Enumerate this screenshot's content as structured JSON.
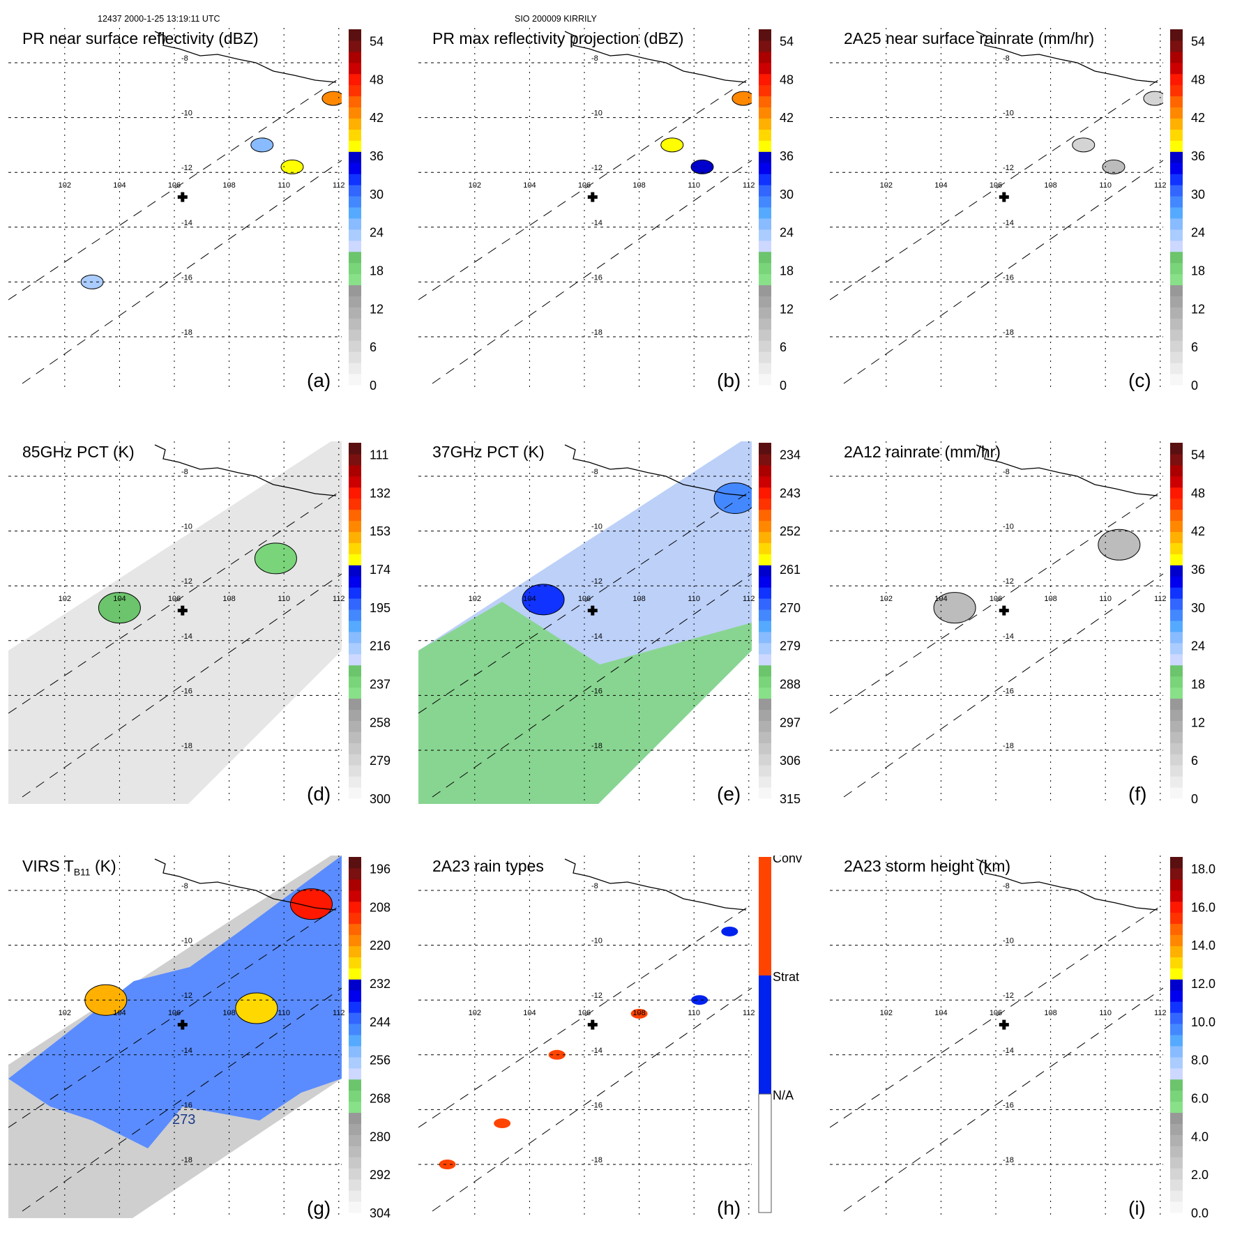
{
  "header": {
    "left": "12437 2000-1-25 13:19:11 UTC",
    "center": "SIO 200009 KIRRILY"
  },
  "map": {
    "lon_ticks": [
      "102",
      "104",
      "106",
      "108",
      "110",
      "112"
    ],
    "lat_ticks": [
      "-8",
      "-10",
      "-12",
      "-14",
      "-16",
      "-18"
    ],
    "storm_center_marker": "plus-icon"
  },
  "colors": {
    "scale": [
      "#f7f7f7",
      "#ececec",
      "#e0e0e0",
      "#d4d4d4",
      "#c8c8c8",
      "#bcbcbc",
      "#b0b0b0",
      "#a4a4a4",
      "#989898",
      "#88e088",
      "#7ad47a",
      "#6cc46c",
      "#ccd8ff",
      "#aaccff",
      "#88bbff",
      "#55aaff",
      "#4488ff",
      "#3366ff",
      "#1133ff",
      "#0000ee",
      "#0000cc",
      "#ffff00",
      "#ffd800",
      "#ffb000",
      "#ff8800",
      "#ff6600",
      "#ff3300",
      "#ff1800",
      "#cc0000",
      "#aa0000",
      "#7a1010",
      "#5a1010"
    ],
    "conv": "#ff4400",
    "strat": "#0022ee",
    "na": "#ffffff"
  },
  "chart_data": [
    {
      "id": "a",
      "type": "heatmap",
      "title": "PR near surface reflectivity (dBZ)",
      "panel_label": "(a)",
      "colorbar": {
        "ticks": [
          "0",
          "6",
          "12",
          "18",
          "24",
          "30",
          "36",
          "42",
          "48",
          "54"
        ],
        "range": [
          0,
          60
        ],
        "units": "dBZ"
      },
      "lon_range": [
        100.5,
        112.3
      ],
      "lat_range": [
        -19,
        -7.5
      ],
      "swath": "PR",
      "features": [
        {
          "lon": 110.3,
          "lat": -11.8,
          "value": 40
        },
        {
          "lon": 111.8,
          "lat": -9.3,
          "value": 45
        },
        {
          "lon": 109.2,
          "lat": -11,
          "value": 28
        },
        {
          "lon": 103,
          "lat": -16,
          "value": 25
        }
      ]
    },
    {
      "id": "b",
      "type": "heatmap",
      "title": "PR max reflectivity projection (dBZ)",
      "panel_label": "(b)",
      "colorbar": {
        "ticks": [
          "0",
          "6",
          "12",
          "18",
          "24",
          "30",
          "36",
          "42",
          "48",
          "54"
        ],
        "range": [
          0,
          60
        ],
        "units": "dBZ"
      },
      "lon_range": [
        100.5,
        112.3
      ],
      "lat_range": [
        -19,
        -7.5
      ],
      "swath": "PR",
      "features": [
        {
          "lon": 110.3,
          "lat": -11.8,
          "value": 38
        },
        {
          "lon": 111.8,
          "lat": -9.3,
          "value": 45
        },
        {
          "lon": 109.2,
          "lat": -11,
          "value": 40
        }
      ]
    },
    {
      "id": "c",
      "type": "heatmap",
      "title": "2A25 near surface rainrate (mm/hr)",
      "panel_label": "(c)",
      "colorbar": {
        "ticks": [
          "0",
          "6",
          "12",
          "18",
          "24",
          "30",
          "36",
          "42",
          "48",
          "54"
        ],
        "range": [
          0,
          60
        ],
        "units": "mm/hr"
      },
      "lon_range": [
        100.5,
        112.3
      ],
      "lat_range": [
        -19,
        -7.5
      ],
      "swath": "PR",
      "features": [
        {
          "lon": 110.3,
          "lat": -11.8,
          "value": 10
        },
        {
          "lon": 111.8,
          "lat": -9.3,
          "value": 6
        },
        {
          "lon": 109.2,
          "lat": -11,
          "value": 6
        }
      ]
    },
    {
      "id": "d",
      "type": "heatmap",
      "title": "85GHz PCT (K)",
      "panel_label": "(d)",
      "colorbar": {
        "ticks": [
          "300",
          "279",
          "258",
          "237",
          "216",
          "195",
          "174",
          "153",
          "132",
          "111"
        ],
        "range": [
          300,
          90
        ],
        "units": "K"
      },
      "lon_range": [
        100.5,
        112.3
      ],
      "lat_range": [
        -19,
        -7.5
      ],
      "swath": "TMI",
      "features": [
        {
          "lon": 104,
          "lat": -12.8,
          "value": 225
        },
        {
          "lon": 109.7,
          "lat": -11,
          "value": 230
        }
      ]
    },
    {
      "id": "e",
      "type": "heatmap",
      "title": "37GHz PCT (K)",
      "panel_label": "(e)",
      "colorbar": {
        "ticks": [
          "315",
          "306",
          "297",
          "288",
          "279",
          "270",
          "261",
          "252",
          "243",
          "234"
        ],
        "range": [
          315,
          225
        ],
        "units": "K"
      },
      "lon_range": [
        100.5,
        112.3
      ],
      "lat_range": [
        -19,
        -7.5
      ],
      "swath": "TMI",
      "features": [
        {
          "lon": 104.5,
          "lat": -12.5,
          "value": 262
        },
        {
          "lon": 111.5,
          "lat": -8.8,
          "value": 268
        }
      ]
    },
    {
      "id": "f",
      "type": "heatmap",
      "title": "2A12 rainrate (mm/hr)",
      "panel_label": "(f)",
      "colorbar": {
        "ticks": [
          "0",
          "6",
          "12",
          "18",
          "24",
          "30",
          "36",
          "42",
          "48",
          "54"
        ],
        "range": [
          0,
          60
        ],
        "units": "mm/hr"
      },
      "lon_range": [
        100.5,
        112.3
      ],
      "lat_range": [
        -19,
        -7.5
      ],
      "swath": "TMI",
      "features": [
        {
          "lon": 104.5,
          "lat": -12.8,
          "value": 10
        },
        {
          "lon": 110.5,
          "lat": -10.5,
          "value": 10
        }
      ]
    },
    {
      "id": "g",
      "type": "heatmap",
      "title": "VIRS T",
      "title_sub": "B11",
      "title_suffix": " (K)",
      "panel_label": "(g)",
      "colorbar": {
        "ticks": [
          "304",
          "292",
          "280",
          "268",
          "256",
          "244",
          "232",
          "220",
          "208",
          "196"
        ],
        "range": [
          304,
          184
        ],
        "units": "K"
      },
      "contour_label": "273",
      "lon_range": [
        100.5,
        112.3
      ],
      "lat_range": [
        -19,
        -7.5
      ],
      "swath": "VIRS",
      "features": [
        {
          "lon": 111,
          "lat": -8.5,
          "value": 200
        },
        {
          "lon": 103.5,
          "lat": -12,
          "value": 215
        },
        {
          "lon": 109,
          "lat": -12.3,
          "value": 220
        }
      ]
    },
    {
      "id": "h",
      "type": "heatmap",
      "title": "2A23 rain types",
      "panel_label": "(h)",
      "colorbar": {
        "categories": [
          "Conv",
          "Strat",
          "N/A"
        ]
      },
      "lon_range": [
        100.5,
        112.3
      ],
      "lat_range": [
        -19,
        -7.5
      ],
      "swath": "PR"
    },
    {
      "id": "i",
      "type": "heatmap",
      "title": "2A23 storm height (km)",
      "panel_label": "(i)",
      "colorbar": {
        "ticks": [
          "0.0",
          "2.0",
          "4.0",
          "6.0",
          "8.0",
          "10.0",
          "12.0",
          "14.0",
          "16.0",
          "18.0"
        ],
        "range": [
          0,
          20
        ],
        "units": "km"
      },
      "lon_range": [
        100.5,
        112.3
      ],
      "lat_range": [
        -19,
        -7.5
      ],
      "swath": "PR"
    }
  ]
}
